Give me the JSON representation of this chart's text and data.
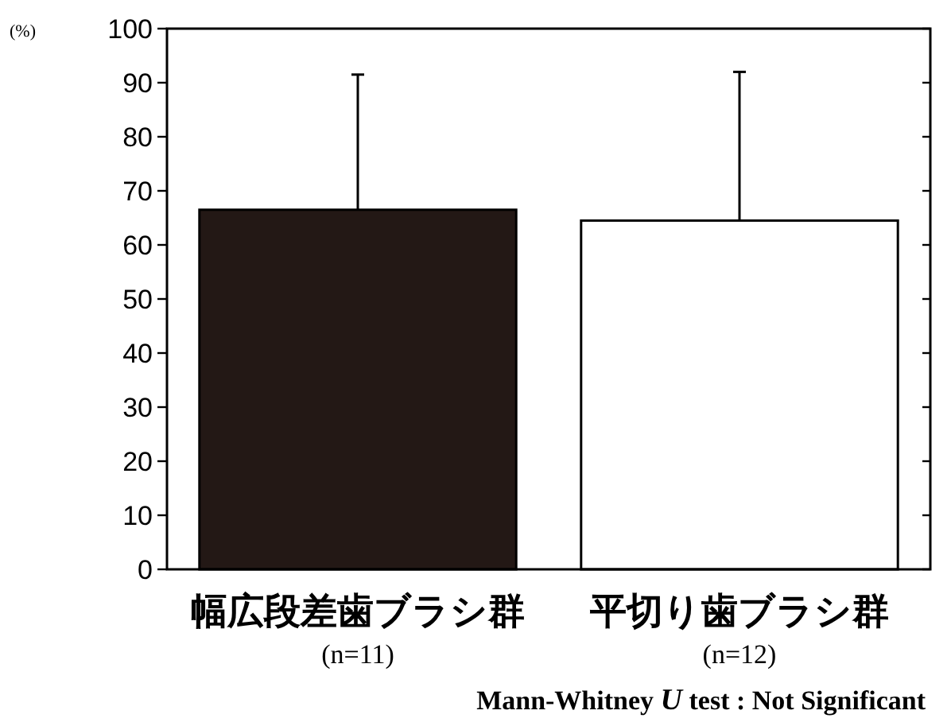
{
  "chart_data": {
    "type": "bar",
    "ylabel": "(%)",
    "categories": [
      "幅広段差歯ブラシ群\n(n=11)",
      "平切り歯ブラシ群\n(n=12)"
    ],
    "values": [
      66.5,
      64.5
    ],
    "errors": [
      [
        66.5,
        91.5
      ],
      [
        64.5,
        92
      ]
    ],
    "colors": [
      "#231815",
      "#ffffff"
    ],
    "ylim": [
      0,
      100
    ],
    "yticks": [
      0,
      10,
      20,
      30,
      40,
      50,
      60,
      70,
      80,
      90,
      100
    ],
    "annotations": [
      "Mann-Whitney *U* test : Not Significant"
    ]
  }
}
